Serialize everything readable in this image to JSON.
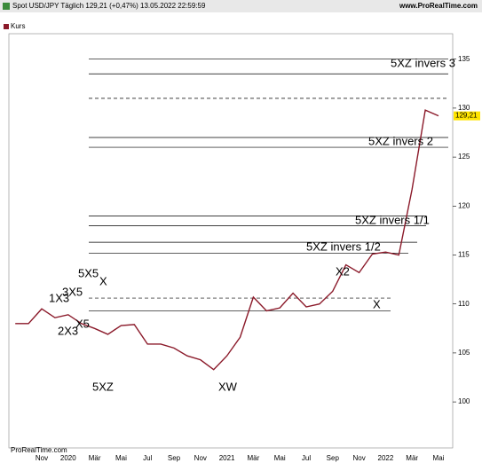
{
  "chart_data": {
    "type": "line",
    "title": "Spot USD/JPY Täglich 129,21 (+0,47%) 13.05.2022 22:59:59",
    "source": "www.ProRealTime.com",
    "footer": "ProRealTime.com",
    "categories": [
      null,
      null,
      "Nov",
      null,
      "2020",
      null,
      "Mär",
      null,
      "Mai",
      null,
      "Jul",
      null,
      "Sep",
      null,
      "Nov",
      null,
      "2021",
      null,
      "Mär",
      null,
      "Mai",
      null,
      "Jul",
      null,
      "Sep",
      null,
      "Nov",
      null,
      "2022",
      null,
      "Mär",
      null,
      "Mai"
    ],
    "series": [
      {
        "name": "Kurs",
        "color": "#8b1a2a",
        "values": [
          108.0,
          108.0,
          109.5,
          108.6,
          108.9,
          108.0,
          107.5,
          106.9,
          107.8,
          107.9,
          105.9,
          105.9,
          105.5,
          104.7,
          104.3,
          103.3,
          104.7,
          106.6,
          110.7,
          109.3,
          109.6,
          111.1,
          109.7,
          110.0,
          111.3,
          114.0,
          113.2,
          115.1,
          115.3,
          115.0,
          121.7,
          129.8,
          129.21
        ],
        "value_labels": [
          null,
          null,
          null,
          null,
          null,
          null,
          null,
          null,
          null,
          null,
          null,
          null,
          null,
          null,
          null,
          null,
          null,
          null,
          null,
          null,
          null,
          null,
          null,
          null,
          null,
          null,
          null,
          null,
          null,
          null,
          null,
          null,
          "129,21"
        ]
      }
    ],
    "ylim": [
      95.3,
      137.6
    ],
    "yticks": [
      100,
      105,
      110,
      115,
      120,
      125,
      130,
      135
    ],
    "reference_lines": [
      135,
      133.5,
      127,
      126,
      119,
      118,
      116.3,
      115.2,
      109.3
    ],
    "dashed_lines": [
      131,
      110.6
    ],
    "annotations": [
      "5XZ invers 3",
      "5XZ invers 2",
      "5XZ invers 1/1",
      "5XZ invers 1/2",
      "X2",
      "X",
      "5X5",
      "X",
      "1X3",
      "3X5",
      "2X3",
      "X5",
      "5XZ",
      "XW"
    ]
  }
}
